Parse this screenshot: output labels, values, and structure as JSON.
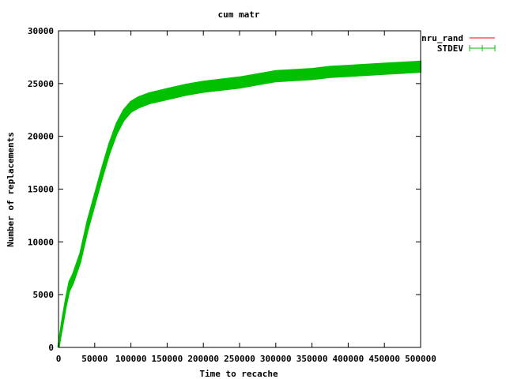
{
  "chart_data": {
    "type": "line",
    "title": "cum matr",
    "xlabel": "Time to recache",
    "ylabel": "Number of replacements",
    "xlim": [
      0,
      500000
    ],
    "ylim": [
      0,
      30000
    ],
    "xticks": [
      0,
      50000,
      100000,
      150000,
      200000,
      250000,
      300000,
      350000,
      400000,
      450000,
      500000
    ],
    "yticks": [
      0,
      5000,
      10000,
      15000,
      20000,
      25000,
      30000
    ],
    "grid": false,
    "legend_position": "top-right",
    "colors": {
      "nru_rand": "#ff0000",
      "STDEV": "#00c000"
    },
    "series": [
      {
        "name": "nru_rand",
        "x": [
          0,
          5000,
          10000,
          15000,
          20000,
          30000,
          40000,
          50000,
          60000,
          70000,
          80000,
          90000,
          100000,
          110000,
          125000,
          150000,
          175000,
          200000,
          225000,
          250000,
          275000,
          300000,
          325000,
          350000,
          375000,
          400000,
          425000,
          450000,
          475000,
          500000
        ],
        "y": [
          0,
          2200,
          4200,
          5800,
          6500,
          8500,
          11500,
          14000,
          16500,
          18800,
          20700,
          22000,
          22800,
          23200,
          23600,
          24000,
          24400,
          24700,
          24900,
          25100,
          25400,
          25700,
          25800,
          25900,
          26100,
          26200,
          26300,
          26400,
          26500,
          26600
        ]
      },
      {
        "name": "STDEV",
        "x": [
          0,
          5000,
          10000,
          15000,
          20000,
          30000,
          40000,
          50000,
          60000,
          70000,
          80000,
          90000,
          100000,
          110000,
          125000,
          150000,
          175000,
          200000,
          225000,
          250000,
          275000,
          300000,
          325000,
          350000,
          375000,
          400000,
          425000,
          450000,
          475000,
          500000
        ],
        "y": [
          0,
          2200,
          4200,
          5800,
          6500,
          8500,
          11500,
          14000,
          16500,
          18800,
          20700,
          22000,
          22800,
          23200,
          23600,
          24000,
          24400,
          24700,
          24900,
          25100,
          25400,
          25700,
          25800,
          25900,
          26100,
          26200,
          26300,
          26400,
          26500,
          26600
        ],
        "error": [
          300,
          400,
          400,
          450,
          450,
          450,
          500,
          500,
          500,
          500,
          500,
          500,
          500,
          500,
          500,
          500,
          500,
          500,
          500,
          500,
          500,
          500,
          500,
          500,
          500,
          500,
          500,
          500,
          500,
          500
        ]
      }
    ]
  }
}
